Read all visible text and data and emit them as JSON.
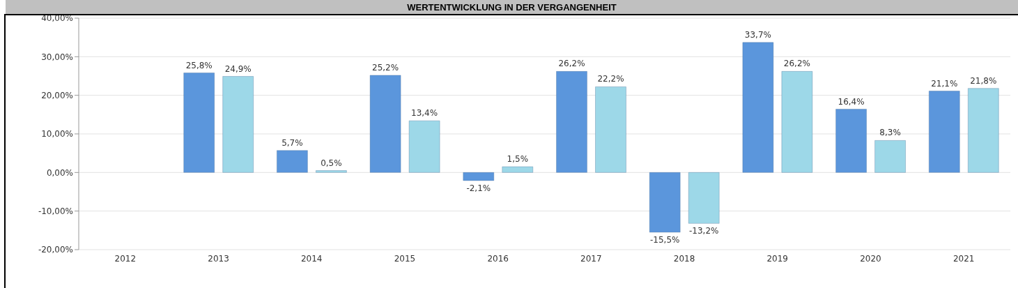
{
  "chart_data": {
    "type": "bar",
    "title": "WERTENTWICKLUNG IN DER VERGANGENHEIT",
    "categories": [
      "2012",
      "2013",
      "2014",
      "2015",
      "2016",
      "2017",
      "2018",
      "2019",
      "2020",
      "2021"
    ],
    "series": [
      {
        "color": "#5b96dc",
        "values": [
          null,
          25.8,
          5.7,
          25.2,
          -2.1,
          26.2,
          -15.5,
          33.7,
          16.4,
          21.1
        ],
        "value_labels": [
          null,
          "25,8%",
          "5,7%",
          "25,2%",
          "-2,1%",
          "26,2%",
          "-15,5%",
          "33,7%",
          "16,4%",
          "21,1%"
        ]
      },
      {
        "color": "#9dd8e8",
        "values": [
          null,
          24.9,
          0.5,
          13.4,
          1.5,
          22.2,
          -13.2,
          26.2,
          8.3,
          21.8
        ],
        "value_labels": [
          null,
          "24,9%",
          "0,5%",
          "13,4%",
          "1,5%",
          "22,2%",
          "-13,2%",
          "26,2%",
          "8,3%",
          "21,8%"
        ]
      }
    ],
    "ylim": [
      -20,
      40
    ],
    "yticks": [
      {
        "value": -20,
        "label": "-20,00%"
      },
      {
        "value": -10,
        "label": "-10,00%"
      },
      {
        "value": 0,
        "label": "0,00%"
      },
      {
        "value": 10,
        "label": "10,00%"
      },
      {
        "value": 20,
        "label": "20,00%"
      },
      {
        "value": 30,
        "label": "30,00%"
      },
      {
        "value": 40,
        "label": "40,00%"
      }
    ],
    "grid": "y"
  }
}
